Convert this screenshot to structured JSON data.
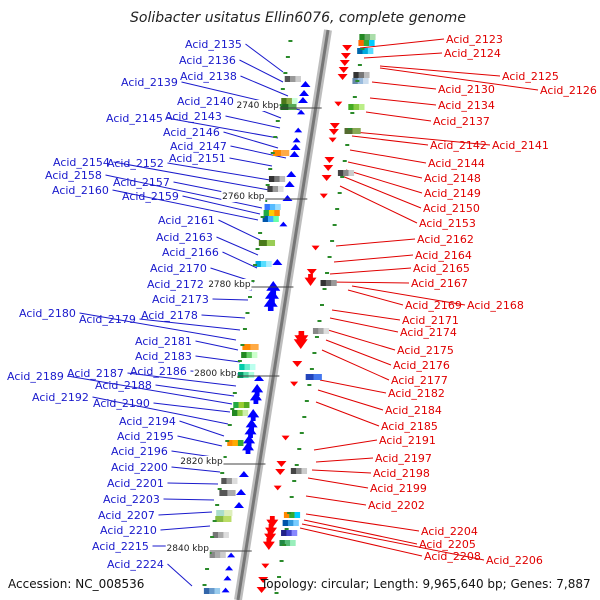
{
  "title": "Solibacter usitatus Ellin6076, complete genome",
  "footer": {
    "accession": "Accession: NC_008536",
    "summary": "Topology: circular; Length: 9,965,640 bp; Genes: 7,887"
  },
  "kbp_markers": [
    "2740 kbp",
    "2760 kbp",
    "2780 kbp",
    "2800 kbp",
    "2820 kbp",
    "2840 kbp"
  ],
  "left_labels": [
    "Acid_2135",
    "Acid_2136",
    "Acid_2138",
    "Acid_2139",
    "Acid_2140",
    "Acid_2143",
    "Acid_2145",
    "Acid_2146",
    "Acid_2147",
    "Acid_2151",
    "Acid_2152",
    "Acid_2154",
    "Acid_2157",
    "Acid_2158",
    "Acid_2159",
    "Acid_2160",
    "Acid_2161",
    "Acid_2163",
    "Acid_2166",
    "Acid_2170",
    "Acid_2172",
    "Acid_2173",
    "Acid_2178",
    "Acid_2179",
    "Acid_2180",
    "Acid_2181",
    "Acid_2183",
    "Acid_2186",
    "Acid_2187",
    "Acid_2188",
    "Acid_2189",
    "Acid_2190",
    "Acid_2192",
    "Acid_2194",
    "Acid_2195",
    "Acid_2196",
    "Acid_2200",
    "Acid_2201",
    "Acid_2203",
    "Acid_2207",
    "Acid_2210",
    "Acid_2215",
    "Acid_2224"
  ],
  "right_labels": [
    "Acid_2123",
    "Acid_2124",
    "Acid_2125",
    "Acid_2126",
    "Acid_2130",
    "Acid_2134",
    "Acid_2137",
    "Acid_2141",
    "Acid_2142",
    "Acid_2144",
    "Acid_2148",
    "Acid_2149",
    "Acid_2150",
    "Acid_2153",
    "Acid_2162",
    "Acid_2164",
    "Acid_2165",
    "Acid_2167",
    "Acid_2168",
    "Acid_2169",
    "Acid_2171",
    "Acid_2174",
    "Acid_2175",
    "Acid_2176",
    "Acid_2177",
    "Acid_2182",
    "Acid_2184",
    "Acid_2185",
    "Acid_2191",
    "Acid_2197",
    "Acid_2198",
    "Acid_2199",
    "Acid_2202",
    "Acid_2204",
    "Acid_2205",
    "Acid_2206",
    "Acid_2208"
  ],
  "colors": {
    "left_label": "#1a1acc",
    "right_label": "#e00000",
    "left_genes": "#0000ff",
    "right_genes": "#ff0000",
    "backbone": "#8c8c8c"
  }
}
